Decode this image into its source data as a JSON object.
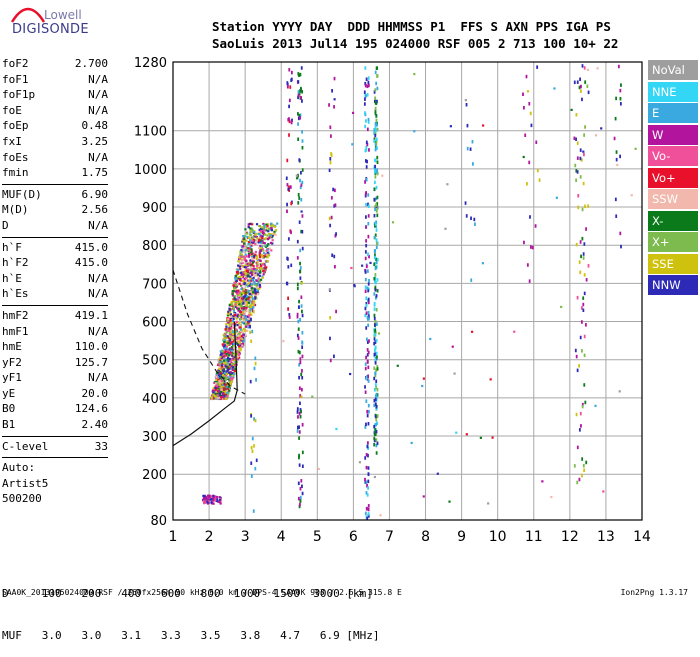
{
  "logo": {
    "line1": "Lowell",
    "line2": "DIGISONDE"
  },
  "header": {
    "line1": "Station YYYY DAY  DDD HHMMSS P1  FFS S AXN PPS IGA PS",
    "line2": "SaoLuis 2013 Jul14 195 024000 RSF 005 2 713 100 10+ 22"
  },
  "params": {
    "group1": [
      {
        "name": "foF2",
        "value": "2.700"
      },
      {
        "name": "foF1",
        "value": "N/A"
      },
      {
        "name": "foF1p",
        "value": "N/A"
      },
      {
        "name": "foE",
        "value": "N/A"
      },
      {
        "name": "foEp",
        "value": "0.48"
      },
      {
        "name": "fxI",
        "value": "3.25"
      },
      {
        "name": "foEs",
        "value": "N/A"
      },
      {
        "name": "fmin",
        "value": "1.75"
      }
    ],
    "group2": [
      {
        "name": "MUF(D)",
        "value": "6.90"
      },
      {
        "name": "M(D)",
        "value": "2.56"
      },
      {
        "name": "D",
        "value": "N/A"
      }
    ],
    "group3": [
      {
        "name": "h`F",
        "value": "415.0"
      },
      {
        "name": "h`F2",
        "value": "415.0"
      },
      {
        "name": "h`E",
        "value": "N/A"
      },
      {
        "name": "h`Es",
        "value": "N/A"
      }
    ],
    "group4": [
      {
        "name": "hmF2",
        "value": "419.1"
      },
      {
        "name": "hmF1",
        "value": "N/A"
      },
      {
        "name": "hmE",
        "value": "110.0"
      },
      {
        "name": "yF2",
        "value": "125.7"
      },
      {
        "name": "yF1",
        "value": "N/A"
      },
      {
        "name": "yE",
        "value": "20.0"
      },
      {
        "name": "B0",
        "value": "124.6"
      },
      {
        "name": "B1",
        "value": "2.40"
      }
    ],
    "group5": [
      {
        "name": "C-level",
        "value": "33"
      }
    ],
    "auto": [
      "Auto:",
      "Artist5",
      "500200"
    ]
  },
  "legend": [
    {
      "label": "NoVal",
      "color": "#9e9e9e"
    },
    {
      "label": "NNE",
      "color": "#33d6f5"
    },
    {
      "label": "E",
      "color": "#39a9e0"
    },
    {
      "label": "W",
      "color": "#b2149e"
    },
    {
      "label": "Vo-",
      "color": "#f04f9a"
    },
    {
      "label": "Vo+",
      "color": "#e8102a"
    },
    {
      "label": "SSW",
      "color": "#f2b8ad"
    },
    {
      "label": "X-",
      "color": "#0b7a1a"
    },
    {
      "label": "X+",
      "color": "#7dbb4e"
    },
    {
      "label": "SSE",
      "color": "#cfc20e"
    },
    {
      "label": "NNW",
      "color": "#2e2ab8"
    }
  ],
  "chart_data": {
    "type": "scatter",
    "xlim": [
      1,
      14
    ],
    "ylim": [
      80,
      1280
    ],
    "x_ticks": [
      "1",
      "2",
      "3",
      "4",
      "5",
      "6",
      "7",
      "8",
      "9",
      "10",
      "11",
      "12",
      "13",
      "14"
    ],
    "y_ticks": [
      "80",
      "200",
      "300",
      "400",
      "500",
      "600",
      "700",
      "800",
      "900",
      "1000",
      "1100",
      "1280"
    ],
    "grid": true,
    "legend_position": "right",
    "echo_clusters": [
      {
        "label": "F-trace",
        "x": [
          1.8,
          3.8
        ],
        "y": [
          400,
          850
        ]
      },
      {
        "label": "E-trace",
        "x": [
          1.8,
          2.3
        ],
        "y": [
          125,
          145
        ]
      },
      {
        "label": "2-hop",
        "x": [
          4.4,
          4.6
        ],
        "y": [
          100,
          1280
        ]
      },
      {
        "label": "3-hop",
        "x": [
          6.3,
          6.7
        ],
        "y": [
          80,
          1280
        ]
      },
      {
        "label": "band-12",
        "x": [
          12.0,
          12.6
        ],
        "y": [
          170,
          1280
        ]
      }
    ],
    "profile_curve": [
      {
        "x": 1.0,
        "y": 275
      },
      {
        "x": 1.5,
        "y": 305
      },
      {
        "x": 2.0,
        "y": 340
      },
      {
        "x": 2.4,
        "y": 370
      },
      {
        "x": 2.7,
        "y": 392
      },
      {
        "x": 2.78,
        "y": 420
      },
      {
        "x": 2.75,
        "y": 500
      },
      {
        "x": 2.7,
        "y": 600
      }
    ],
    "muf_curve": [
      {
        "x": 1.0,
        "y": 735
      },
      {
        "x": 1.4,
        "y": 620
      },
      {
        "x": 1.8,
        "y": 530
      },
      {
        "x": 2.2,
        "y": 470
      },
      {
        "x": 2.6,
        "y": 430
      },
      {
        "x": 3.0,
        "y": 410
      }
    ],
    "distance_muf_table": {
      "d_label": "D",
      "d_values": [
        "100",
        "200",
        "400",
        "600",
        "800",
        "1000",
        "1500",
        "3000"
      ],
      "d_unit": "[km]",
      "muf_label": "MUF",
      "muf_values": [
        "3.0",
        "3.0",
        "3.1",
        "3.3",
        "3.5",
        "3.8",
        "4.7",
        "6.9"
      ],
      "muf_unit": "[MHz]"
    }
  },
  "footer": {
    "left": "SAA0K_2013195024000.RSF / 260fx256h 50 kHz 5.0 km / DPS-4 SAA0K 903 / 2.6 S 315.8 E",
    "right": "Ion2Png 1.3.17"
  }
}
